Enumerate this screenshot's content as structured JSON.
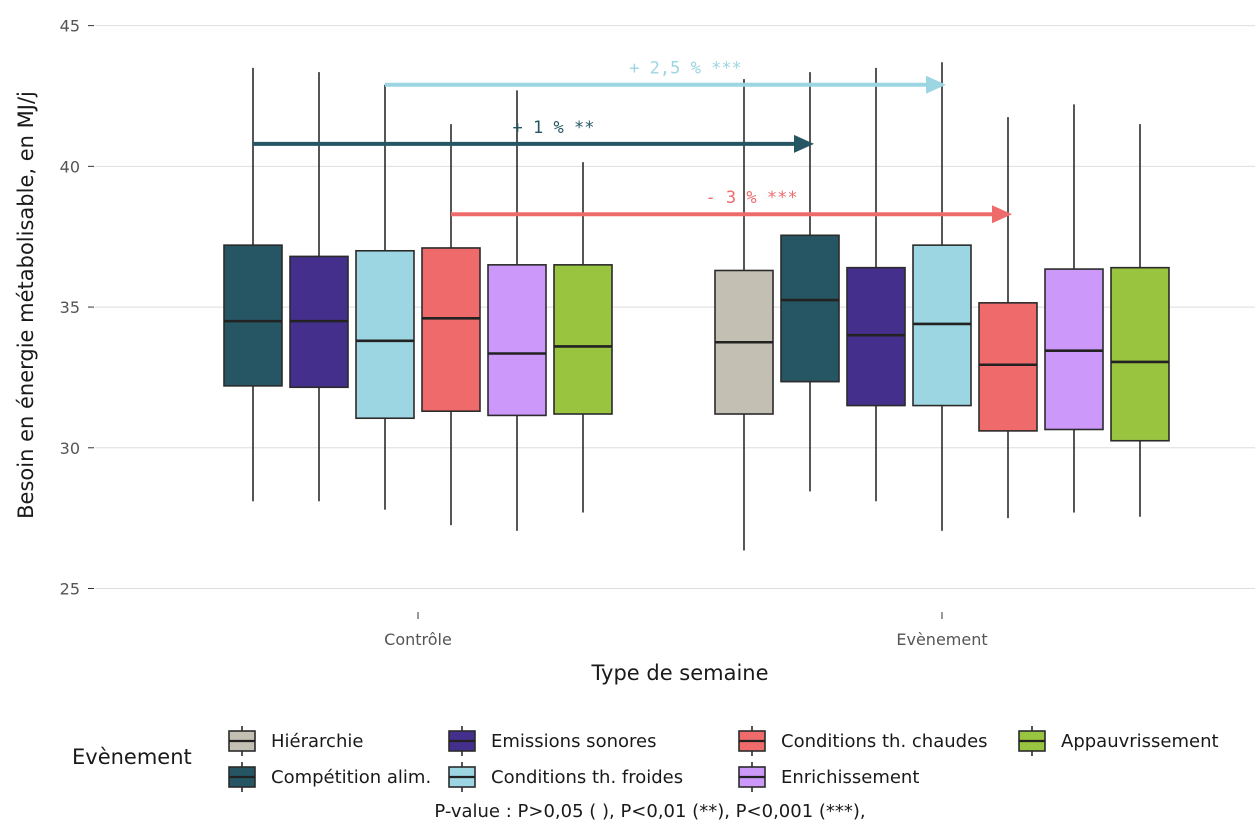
{
  "chart_data": {
    "type": "box",
    "xlabel": "Type de semaine",
    "ylabel": "Besoin en énergie métabolisable, en MJ/j",
    "ylim": [
      24.3,
      45.3
    ],
    "yticks": [
      25,
      30,
      35,
      40,
      45
    ],
    "grid": true,
    "categories": [
      "Contrôle",
      "Evènement"
    ],
    "series": [
      {
        "name": "Hiérarchie",
        "color": "#c4bfb3"
      },
      {
        "name": "Compétition alim.",
        "color": "#265663"
      },
      {
        "name": "Emissions sonores",
        "color": "#452f8c"
      },
      {
        "name": "Conditions th. froides",
        "color": "#9cd6e3"
      },
      {
        "name": "Conditions th. chaudes",
        "color": "#ef6b6b"
      },
      {
        "name": "Enrichissement",
        "color": "#cc99fa"
      },
      {
        "name": "Appauvrissement",
        "color": "#99c440"
      }
    ],
    "boxes": [
      {
        "category": "Contrôle",
        "series": "Compétition alim.",
        "min": 28.1,
        "q1": 32.2,
        "median": 34.5,
        "q3": 37.2,
        "max": 43.5
      },
      {
        "category": "Contrôle",
        "series": "Emissions sonores",
        "min": 28.1,
        "q1": 32.15,
        "median": 34.5,
        "q3": 36.8,
        "max": 43.35
      },
      {
        "category": "Contrôle",
        "series": "Conditions th. froides",
        "min": 27.8,
        "q1": 31.05,
        "median": 33.8,
        "q3": 37.0,
        "max": 42.9
      },
      {
        "category": "Contrôle",
        "series": "Conditions th. chaudes",
        "min": 27.25,
        "q1": 31.3,
        "median": 34.6,
        "q3": 37.1,
        "max": 41.5
      },
      {
        "category": "Contrôle",
        "series": "Enrichissement",
        "min": 27.05,
        "q1": 31.15,
        "median": 33.35,
        "q3": 36.5,
        "max": 42.7
      },
      {
        "category": "Contrôle",
        "series": "Appauvrissement",
        "min": 27.7,
        "q1": 31.2,
        "median": 33.6,
        "q3": 36.5,
        "max": 40.15
      },
      {
        "category": "Evènement",
        "series": "Hiérarchie",
        "min": 26.35,
        "q1": 31.2,
        "median": 33.75,
        "q3": 36.3,
        "max": 43.1
      },
      {
        "category": "Evènement",
        "series": "Compétition alim.",
        "min": 28.45,
        "q1": 32.35,
        "median": 35.25,
        "q3": 37.55,
        "max": 43.35
      },
      {
        "category": "Evènement",
        "series": "Emissions sonores",
        "min": 28.1,
        "q1": 31.5,
        "median": 34.0,
        "q3": 36.4,
        "max": 43.5
      },
      {
        "category": "Evènement",
        "series": "Conditions th. froides",
        "min": 27.05,
        "q1": 31.5,
        "median": 34.4,
        "q3": 37.2,
        "max": 43.7
      },
      {
        "category": "Evènement",
        "series": "Conditions th. chaudes",
        "min": 27.5,
        "q1": 30.6,
        "median": 32.95,
        "q3": 35.15,
        "max": 41.75
      },
      {
        "category": "Evènement",
        "series": "Enrichissement",
        "min": 27.7,
        "q1": 30.65,
        "median": 33.45,
        "q3": 36.35,
        "max": 42.2
      },
      {
        "category": "Evènement",
        "series": "Appauvrissement",
        "min": 27.55,
        "q1": 30.25,
        "median": 33.05,
        "q3": 36.4,
        "max": 41.5
      }
    ],
    "annotations": [
      {
        "text": "+ 2,5 % ***",
        "from": "Contrôle",
        "to": "Evènement",
        "series": "Conditions th. froides",
        "y": 42.9,
        "color": "#9cd6e3"
      },
      {
        "text": "+ 1 % **",
        "from": "Contrôle",
        "to": "Evènement",
        "series": "Compétition alim.",
        "y": 40.8,
        "color": "#265663"
      },
      {
        "text": "- 3 % ***",
        "from": "Contrôle",
        "to": "Evènement",
        "series": "Conditions th. chaudes",
        "y": 38.3,
        "color": "#ef6b6b"
      }
    ],
    "legend": {
      "title": "Evènement",
      "position": "bottom"
    },
    "note": "P-value : P>0,05 ( ), P<0,01 (**), P<0,001 (***),"
  }
}
